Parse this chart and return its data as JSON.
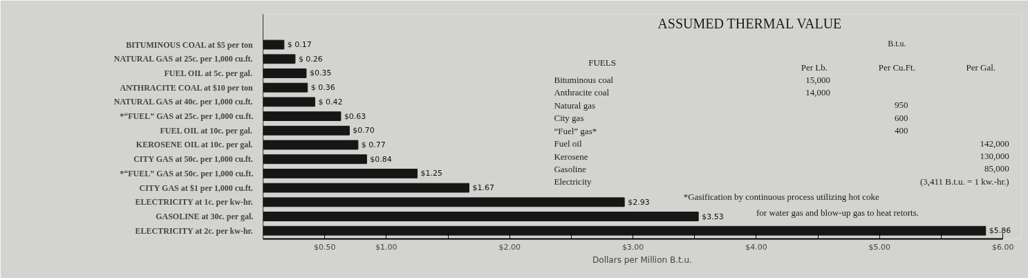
{
  "chart_data": {
    "type": "bar",
    "orientation": "horizontal",
    "color": "#161616",
    "categories": [
      "BITUMINOUS COAL at $5 per ton",
      "NATURAL GAS at 25c. per 1,000 cu.ft.",
      "FUEL OIL at 5c. per gal.",
      "ANTHRACITE COAL at $10 per ton",
      "NATURAL GAS at 40c. per 1,000 cu.ft.",
      "*“FUEL” GAS at 25c. per 1,000 cu.ft.",
      "FUEL OIL at 10c. per gal.",
      "KEROSENE OIL at 10c. per gal.",
      "CITY GAS at 50c. per 1,000 cu.ft.",
      "*“FUEL” GAS at 50c. per 1,000 cu.ft.",
      "CITY GAS at $1 per 1,000 cu.ft.",
      "ELECTRICITY at 1c. per kw-hr.",
      "GASOLINE at 30c. per gal.",
      "ELECTRICITY at 2c. per kw-hr."
    ],
    "values": [
      0.17,
      0.26,
      0.35,
      0.36,
      0.42,
      0.63,
      0.7,
      0.77,
      0.84,
      1.25,
      1.67,
      2.93,
      3.53,
      5.86
    ],
    "value_labels": [
      "$ 0.17",
      "$ 0.26",
      "$0.35",
      "$ 0.36",
      "$ 0.42",
      "$0.63",
      "$0.70",
      "$ 0.77",
      "$0.84",
      "$1.25",
      "$1.67",
      "$2.93",
      "$3.53",
      "$5.86"
    ],
    "xlabel": "Dollars per Million B.t.u.",
    "xlim": [
      0,
      6
    ],
    "xticks": [
      {
        "value": 0.5,
        "label": "$0.50"
      },
      {
        "value": 1,
        "label": "$1.00"
      },
      {
        "value": 1.5,
        "label": null
      },
      {
        "value": 2,
        "label": "$2.00"
      },
      {
        "value": 2.5,
        "label": null
      },
      {
        "value": 3,
        "label": "$3.00"
      },
      {
        "value": 3.5,
        "label": null
      },
      {
        "value": 4,
        "label": "$4.00"
      },
      {
        "value": 4.5,
        "label": null
      },
      {
        "value": 5,
        "label": "$5.00"
      },
      {
        "value": 5.5,
        "label": null
      },
      {
        "value": 6,
        "label": "$6.00"
      }
    ],
    "grid": false,
    "annotations": [
      "ASSUMED THERMAL VALUE",
      "B.t.u.",
      "FUELS",
      "Per Lb.",
      "Per Cu.Ft.",
      "Per Gal.",
      "Bituminous coal",
      "15,000",
      "Anthracite coal",
      "14,000",
      "Natural gas",
      "950",
      "City gas",
      "600",
      "“Fuel” gas*",
      "400",
      "Fuel oil",
      "142,000",
      "Kerosene",
      "130,000",
      "Gasoline",
      "85,000",
      "Electricity",
      "(3,411 B.t.u. = 1 kw.-hr.)",
      "*Gasification by continuous process utilizing hot coke",
      "for water gas and blow-up gas to heat retorts."
    ]
  }
}
